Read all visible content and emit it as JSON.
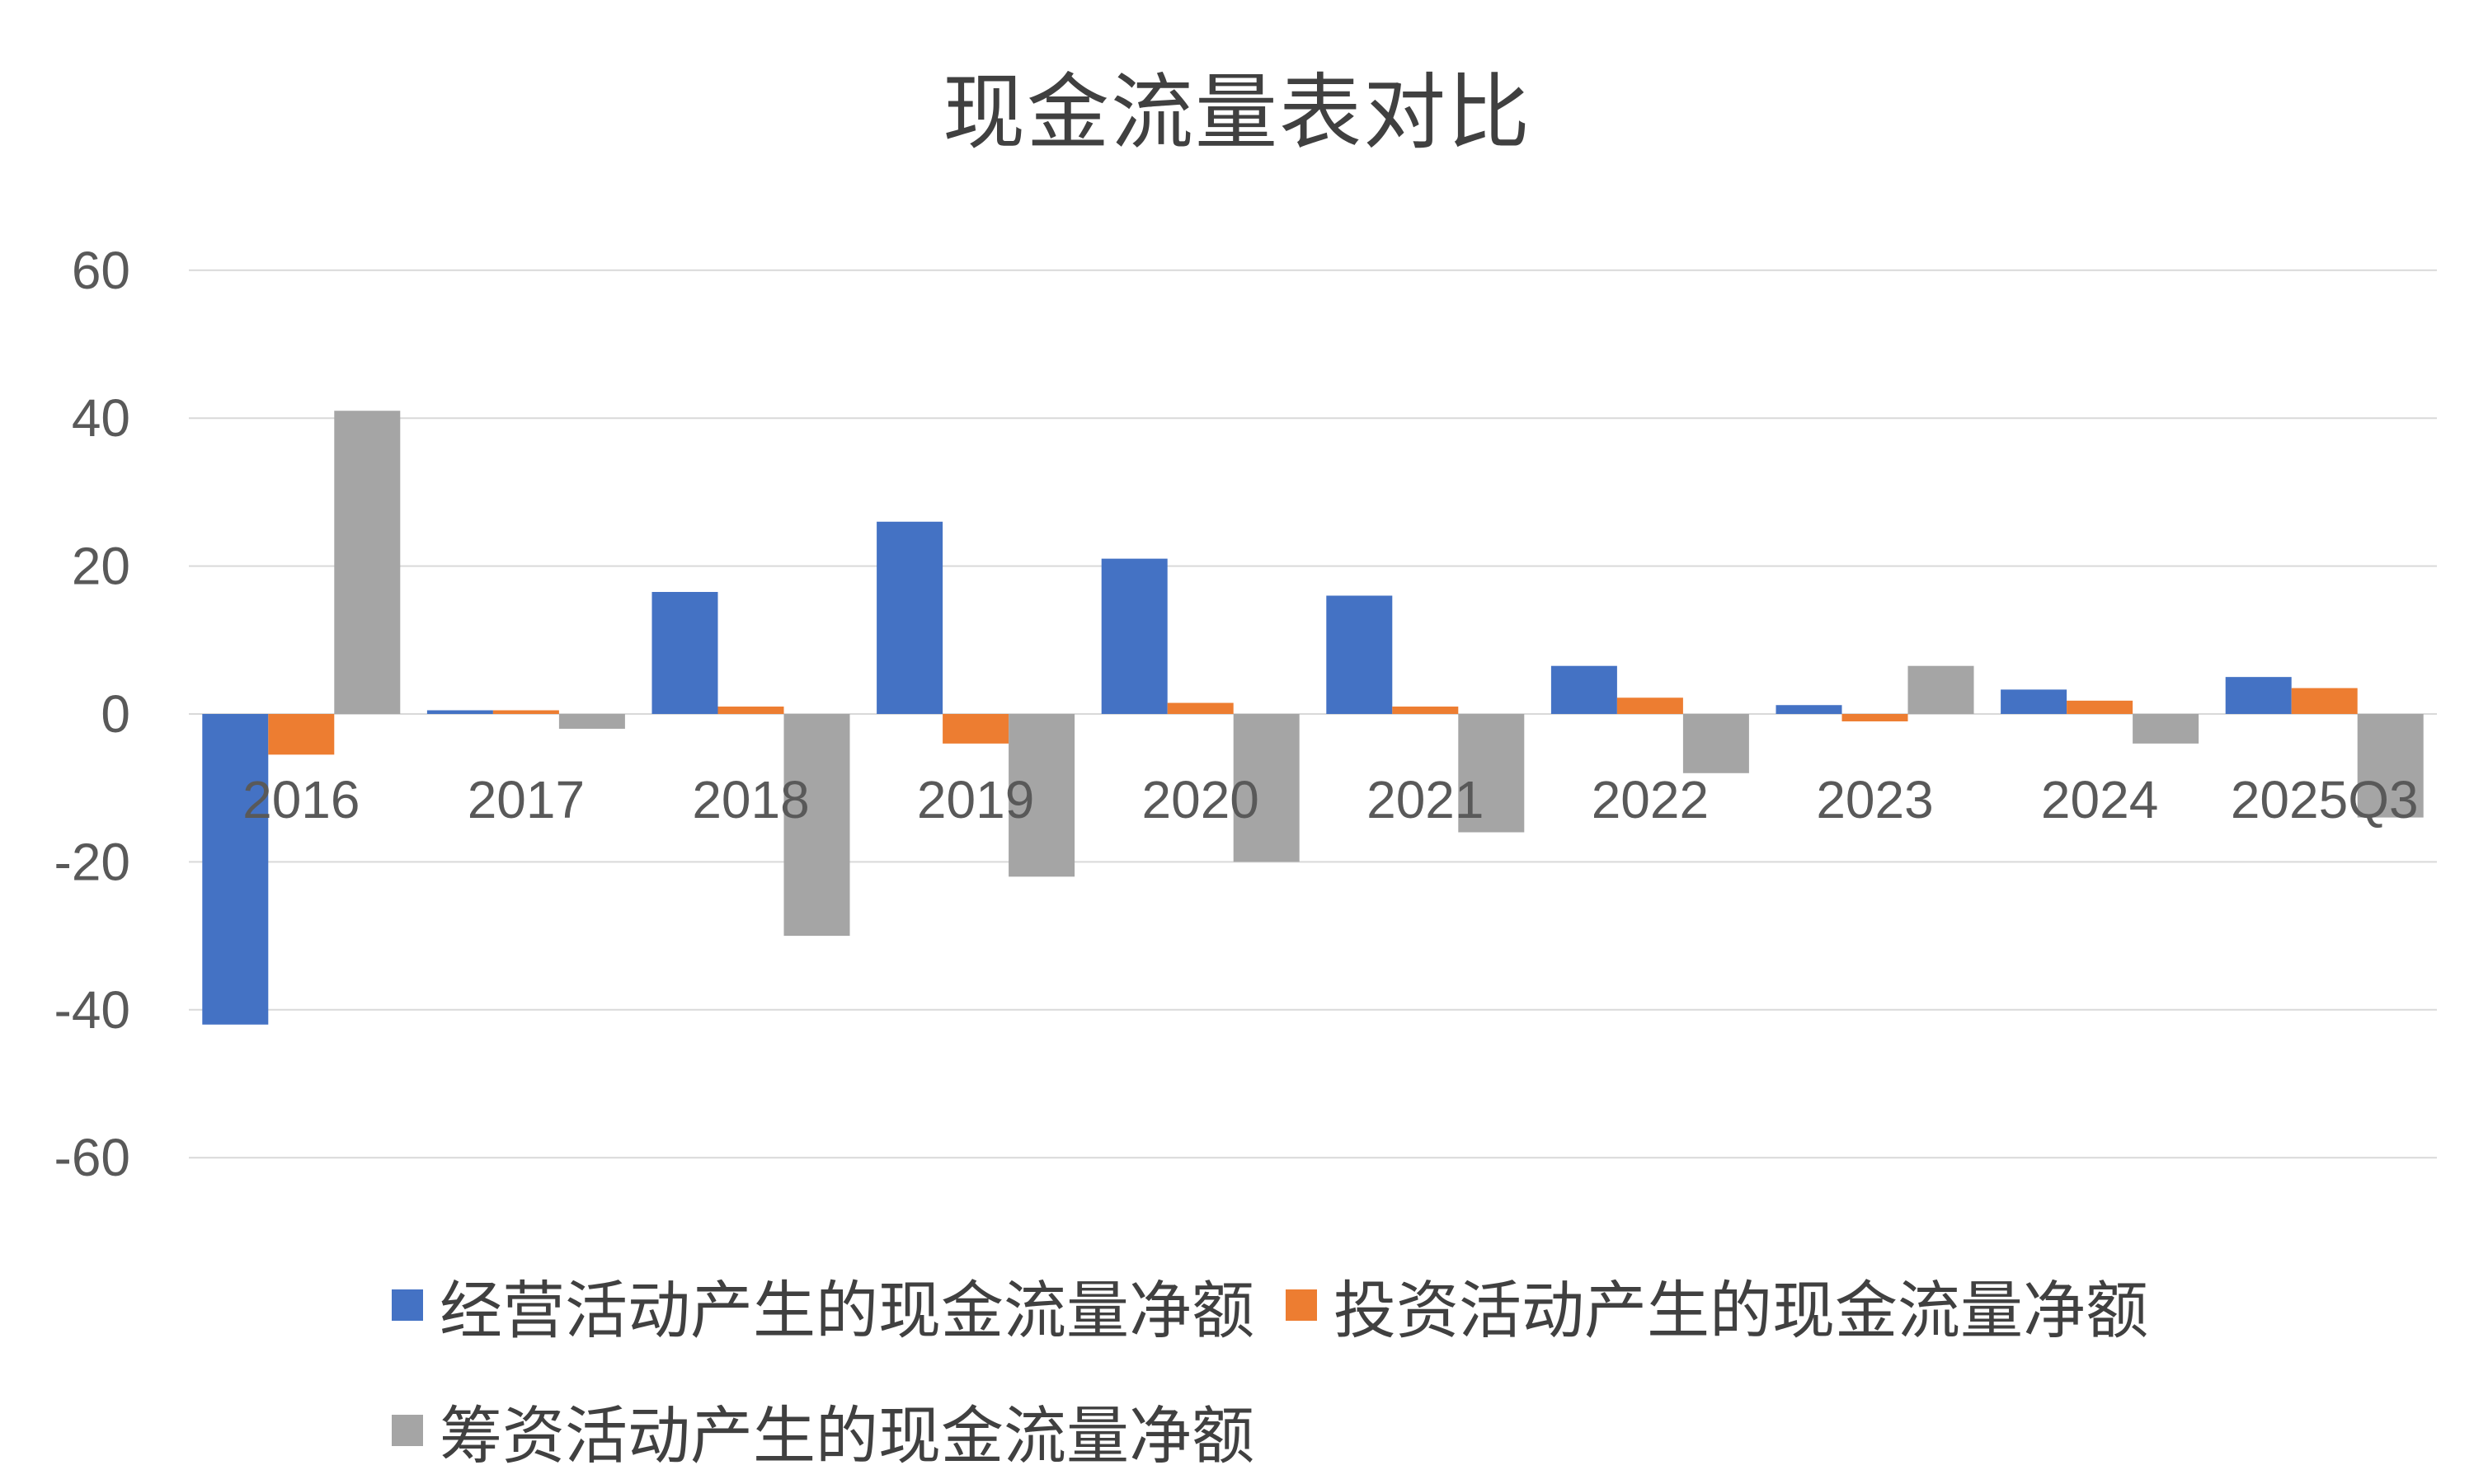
{
  "chart_data": {
    "type": "bar",
    "title": "现金流量表对比",
    "xlabel": "",
    "ylabel": "",
    "categories": [
      "2016",
      "2017",
      "2018",
      "2019",
      "2020",
      "2021",
      "2022",
      "2023",
      "2024",
      "2025Q3"
    ],
    "series": [
      {
        "key": "operating",
        "name": "经营活动产生的现金流量净额",
        "color": "#4472C4",
        "values": [
          -42,
          0.5,
          16.5,
          26,
          21,
          16,
          6.5,
          1.2,
          3.3,
          5
        ]
      },
      {
        "key": "investing",
        "name": "投资活动产生的现金流量净额",
        "color": "#ED7D31",
        "values": [
          -5.5,
          0.5,
          1,
          -4,
          1.5,
          1,
          2.2,
          -1,
          1.8,
          3.5
        ]
      },
      {
        "key": "financing",
        "name": "筹资活动产生的现金流量净额",
        "color": "#A5A5A5",
        "values": [
          41,
          -2,
          -30,
          -22,
          -20,
          -16,
          -8,
          6.5,
          -4,
          -14
        ]
      }
    ],
    "ylim": [
      -60,
      60
    ],
    "yticks": [
      60,
      40,
      20,
      0,
      -20,
      -40,
      -60
    ],
    "grid": true,
    "grid_color": "#D9D9D9",
    "legend_position": "bottom",
    "legend_rows": [
      [
        0,
        1
      ],
      [
        2
      ]
    ]
  }
}
